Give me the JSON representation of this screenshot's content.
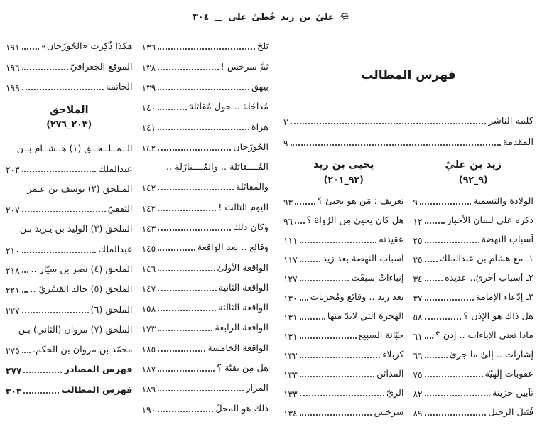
{
  "header": {
    "page_number": "٣٠٤",
    "separator_box": "□",
    "title_words": [
      "على",
      "خُطىٰ",
      "زيد",
      "بن",
      "عليّ"
    ],
    "honorific": "﵇"
  },
  "right_page": {
    "title": "فهرس المطالب",
    "intro": [
      {
        "t": "كلمة الناشر",
        "p": "٣"
      },
      {
        "t": "المقدمة",
        "p": "٩"
      }
    ],
    "columns": [
      {
        "header": "زيد بن عليّ",
        "range": "(٩_٩٢)",
        "entries": [
          {
            "t": "الولادة والتسمية",
            "p": "٩"
          },
          {
            "t": "ذكره علىٰ لسان الأخبار",
            "p": "١٢"
          },
          {
            "t": "أسباب النهضة",
            "p": "٢٥"
          },
          {
            "t": "١ـ مع هشام بن عبدالملك",
            "p": "٢٥"
          },
          {
            "t": "٢ـ أسباب أُخرىٰ.. عديدة",
            "p": "٣٤"
          },
          {
            "t": "٣ـ إدّعاء الإمامة",
            "p": "٣٧"
          },
          {
            "t": "هل ذاك هو الإذن ؟",
            "p": "٥٨"
          },
          {
            "t": "ماذا تعني الإباءات .. إذن ؟",
            "p": "٦١"
          },
          {
            "t": "إشارات .. إلىٰ ما جرىٰ",
            "p": "٦٦"
          },
          {
            "t": "عقوبات إلٰهيّة",
            "p": "٧٥"
          },
          {
            "t": "تآبين حزينة",
            "p": "٨٢"
          },
          {
            "t": "قُبَيلَ الرحيل",
            "p": "٨٩"
          }
        ]
      },
      {
        "header": "يحيى بن زيد",
        "range": "(٩٣_٢٠١)",
        "entries": [
          {
            "t": "تعريف : مَن هو يحيىٰ ؟",
            "p": "٩٣"
          },
          {
            "t": "هل كان يحيىٰ مِن الرُواة ؟",
            "p": "٩٦"
          },
          {
            "t": "عقيدته",
            "p": "١١١"
          },
          {
            "t": "أسباب النهضة بعد زيد",
            "p": "١١٧"
          },
          {
            "t": "إنباءاتٌ سبَقَت",
            "p": "١٢٧"
          },
          {
            "t": "بعد زيد .. وقائع ومُجرَيات",
            "p": "١٣٠"
          },
          {
            "t": "الهجرة التي لابدّ منها",
            "p": "١٣١"
          },
          {
            "t": "جبّانة السبيع",
            "p": "١٣١"
          },
          {
            "t": "كربلاء",
            "p": "١٣٢"
          },
          {
            "t": "المدائن",
            "p": "١٣٣"
          },
          {
            "t": "الريّ",
            "p": "١٣٣"
          },
          {
            "t": "سرخس",
            "p": "١٣٤"
          }
        ]
      }
    ]
  },
  "left_page": {
    "right_column": {
      "entries": [
        {
          "t": "بَلْخ",
          "p": "١٣٦"
        },
        {
          "t": "ثمَّ سرخس !",
          "p": "١٣٨"
        },
        {
          "t": "بيهق",
          "p": "١٣٩"
        },
        {
          "t": "مُداخَلة .. حول مُقاتَلة",
          "p": "١٤٠"
        },
        {
          "t": "هراة",
          "p": "١٤١"
        },
        {
          "t": "الجُوزَجان",
          "p": "١٤٢"
        },
        {
          "t": "المُــــقابَلة .. والمُــــنازَلة .."
        },
        {
          "t": "والمقاتَلة",
          "p": "١٤٢"
        },
        {
          "t": "اليوم الثالث !",
          "p": "١٤٢"
        },
        {
          "t": "وكان ذلك",
          "p": "١٤٣"
        },
        {
          "t": "وقائع .. بعد الواقعة",
          "p": "١٤٥"
        },
        {
          "t": "الواقعة الأُولىٰ",
          "p": "١٤٦"
        },
        {
          "t": "الواقعة الثانية",
          "p": "١٤٧"
        },
        {
          "t": "الواقعة الثالثة",
          "p": "١٥٨"
        },
        {
          "t": "الواقعة الرابعة",
          "p": "١٧٣"
        },
        {
          "t": "الواقعة الخامسة",
          "p": "١٨٥"
        },
        {
          "t": "هل مِن بقيّة ؟",
          "p": "١٨٧"
        },
        {
          "t": "المزار",
          "p": "١٨٩"
        },
        {
          "t": "ذلك هو المحلّ",
          "p": "١٩٠"
        }
      ]
    },
    "left_column": {
      "top_entries": [
        {
          "t": "هكذا ذُكِرت «الجُوزَجان»",
          "p": "١٩١"
        },
        {
          "t": "الموقع الجغرافيّ",
          "p": "١٩٦"
        },
        {
          "t": "الخاتمة",
          "p": "١٩٩"
        }
      ],
      "appendix": {
        "title": "الملاحق",
        "range": "(٢٠٣_٢٧٦)",
        "entries": [
          {
            "t": "الــمــلــحــق (١) هــشــام بــن"
          },
          {
            "t": "عبدالملك",
            "p": "٢٠٣"
          },
          {
            "t": "المـلحق (٢) يوسف بن عـمر"
          },
          {
            "t": "الثقفيّ",
            "p": "٢٠٧"
          },
          {
            "t": "الملحق (٣) الوليد بن يـزيد بـن"
          },
          {
            "t": "عبدالملك",
            "p": "٢١٠"
          },
          {
            "t": "الملحق (٤) نصر بن سيّار ..",
            "p": "٢١٨"
          },
          {
            "t": "الملحق (٥) خالد القَسْريّ ..",
            "p": "٢٢١"
          },
          {
            "t": "الملحق (٦)",
            "p": "٢٢٧"
          },
          {
            "t": "الملحق (٧) مروان (الثاني) بـن"
          },
          {
            "t": "محمّد بن مروان بن الحكم.",
            "p": "٢٧٥"
          },
          {
            "t": "فهرس المصادر",
            "p": "٢٧٧",
            "bold": true
          },
          {
            "t": "فهرس المطالب",
            "p": "٣٠٣",
            "bold": true
          }
        ]
      }
    }
  },
  "colors": {
    "page_background": "#ffffff",
    "ink": "#1c1c1c",
    "leader_dots": "#4a4a4a"
  }
}
